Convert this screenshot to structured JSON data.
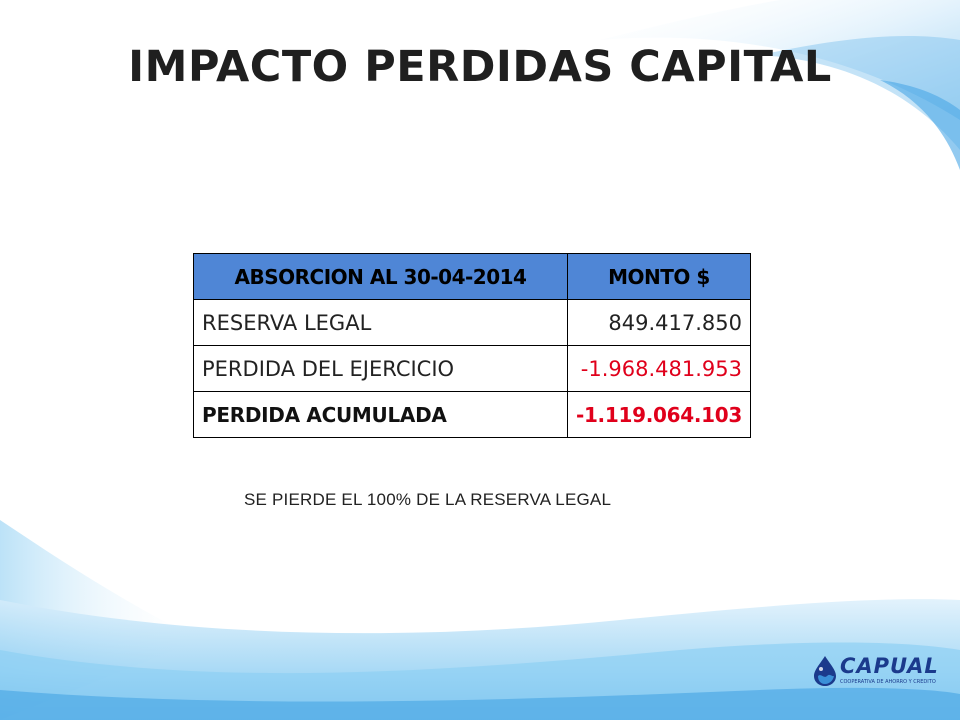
{
  "slide": {
    "title": "IMPACTO PERDIDAS CAPITAL"
  },
  "table": {
    "headers": [
      "ABSORCION AL 30-04-2014",
      "MONTO $"
    ],
    "rows": [
      {
        "label": "RESERVA LEGAL",
        "amount": "849.417.850"
      },
      {
        "label": "PERDIDA DEL EJERCICIO",
        "amount": "-1.968.481.953"
      },
      {
        "label": "PERDIDA ACUMULADA",
        "amount": "-1.119.064.103"
      }
    ]
  },
  "note": "SE PIERDE EL 100% DE LA RESERVA LEGAL",
  "logo": {
    "name": "CAPUAL",
    "subtitle": "COOPERATIVA DE AHORRO Y CREDITO",
    "colors": {
      "primary": "#1b3a8c",
      "accent": "#3a8fd8"
    }
  },
  "colors": {
    "header_fill": "#4f86d6",
    "negative": "#e0001b",
    "wave": "#7cc0ee"
  }
}
